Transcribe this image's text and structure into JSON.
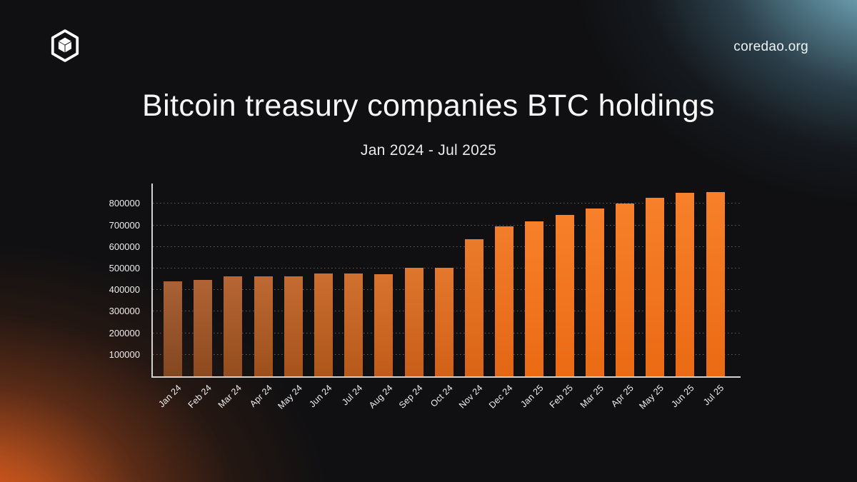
{
  "brand": {
    "site_url": "coredao.org",
    "logo_icon": "core-dao-hexagon-cube"
  },
  "title": "Bitcoin treasury companies BTC holdings",
  "subtitle": "Jan 2024 - Jul 2025",
  "chart_data": {
    "type": "bar",
    "title": "Bitcoin treasury companies BTC holdings",
    "subtitle": "Jan 2024 - Jul 2025",
    "categories": [
      "Jan 24",
      "Feb 24",
      "Mar 24",
      "Apr 24",
      "May 24",
      "Jun 24",
      "Jul 24",
      "Aug 24",
      "Sep 24",
      "Oct 24",
      "Nov 24",
      "Dec 24",
      "Jan 25",
      "Feb 25",
      "Mar 25",
      "Apr 25",
      "May 25",
      "Jun 25",
      "Jul 25"
    ],
    "values": [
      442000,
      446000,
      462000,
      464000,
      462000,
      476000,
      478000,
      475000,
      505000,
      502000,
      637000,
      695000,
      720000,
      750000,
      778000,
      803000,
      827000,
      850000,
      853000
    ],
    "xlabel": "",
    "ylabel": "",
    "ylim": [
      0,
      886000
    ],
    "yticks": [
      100000,
      200000,
      300000,
      400000,
      500000,
      600000,
      700000,
      800000
    ],
    "grid": "horizontal-dotted",
    "legend": "none",
    "bar_colors": {
      "muted_top": "#aa6136",
      "muted_bottom": "#83471f",
      "bright_top": "#f8802a",
      "bright_bottom": "#eb6a14",
      "ramp_end_index": 12
    },
    "axis_color": "#d2d2d2",
    "tick_label_color": "#ececec",
    "gridline_color": "rgba(172,172,172,0.5)"
  },
  "background": {
    "base": "#101012",
    "glow_bottom_left": "#ef5d1c",
    "glow_top_right": "#9ecfdd"
  }
}
